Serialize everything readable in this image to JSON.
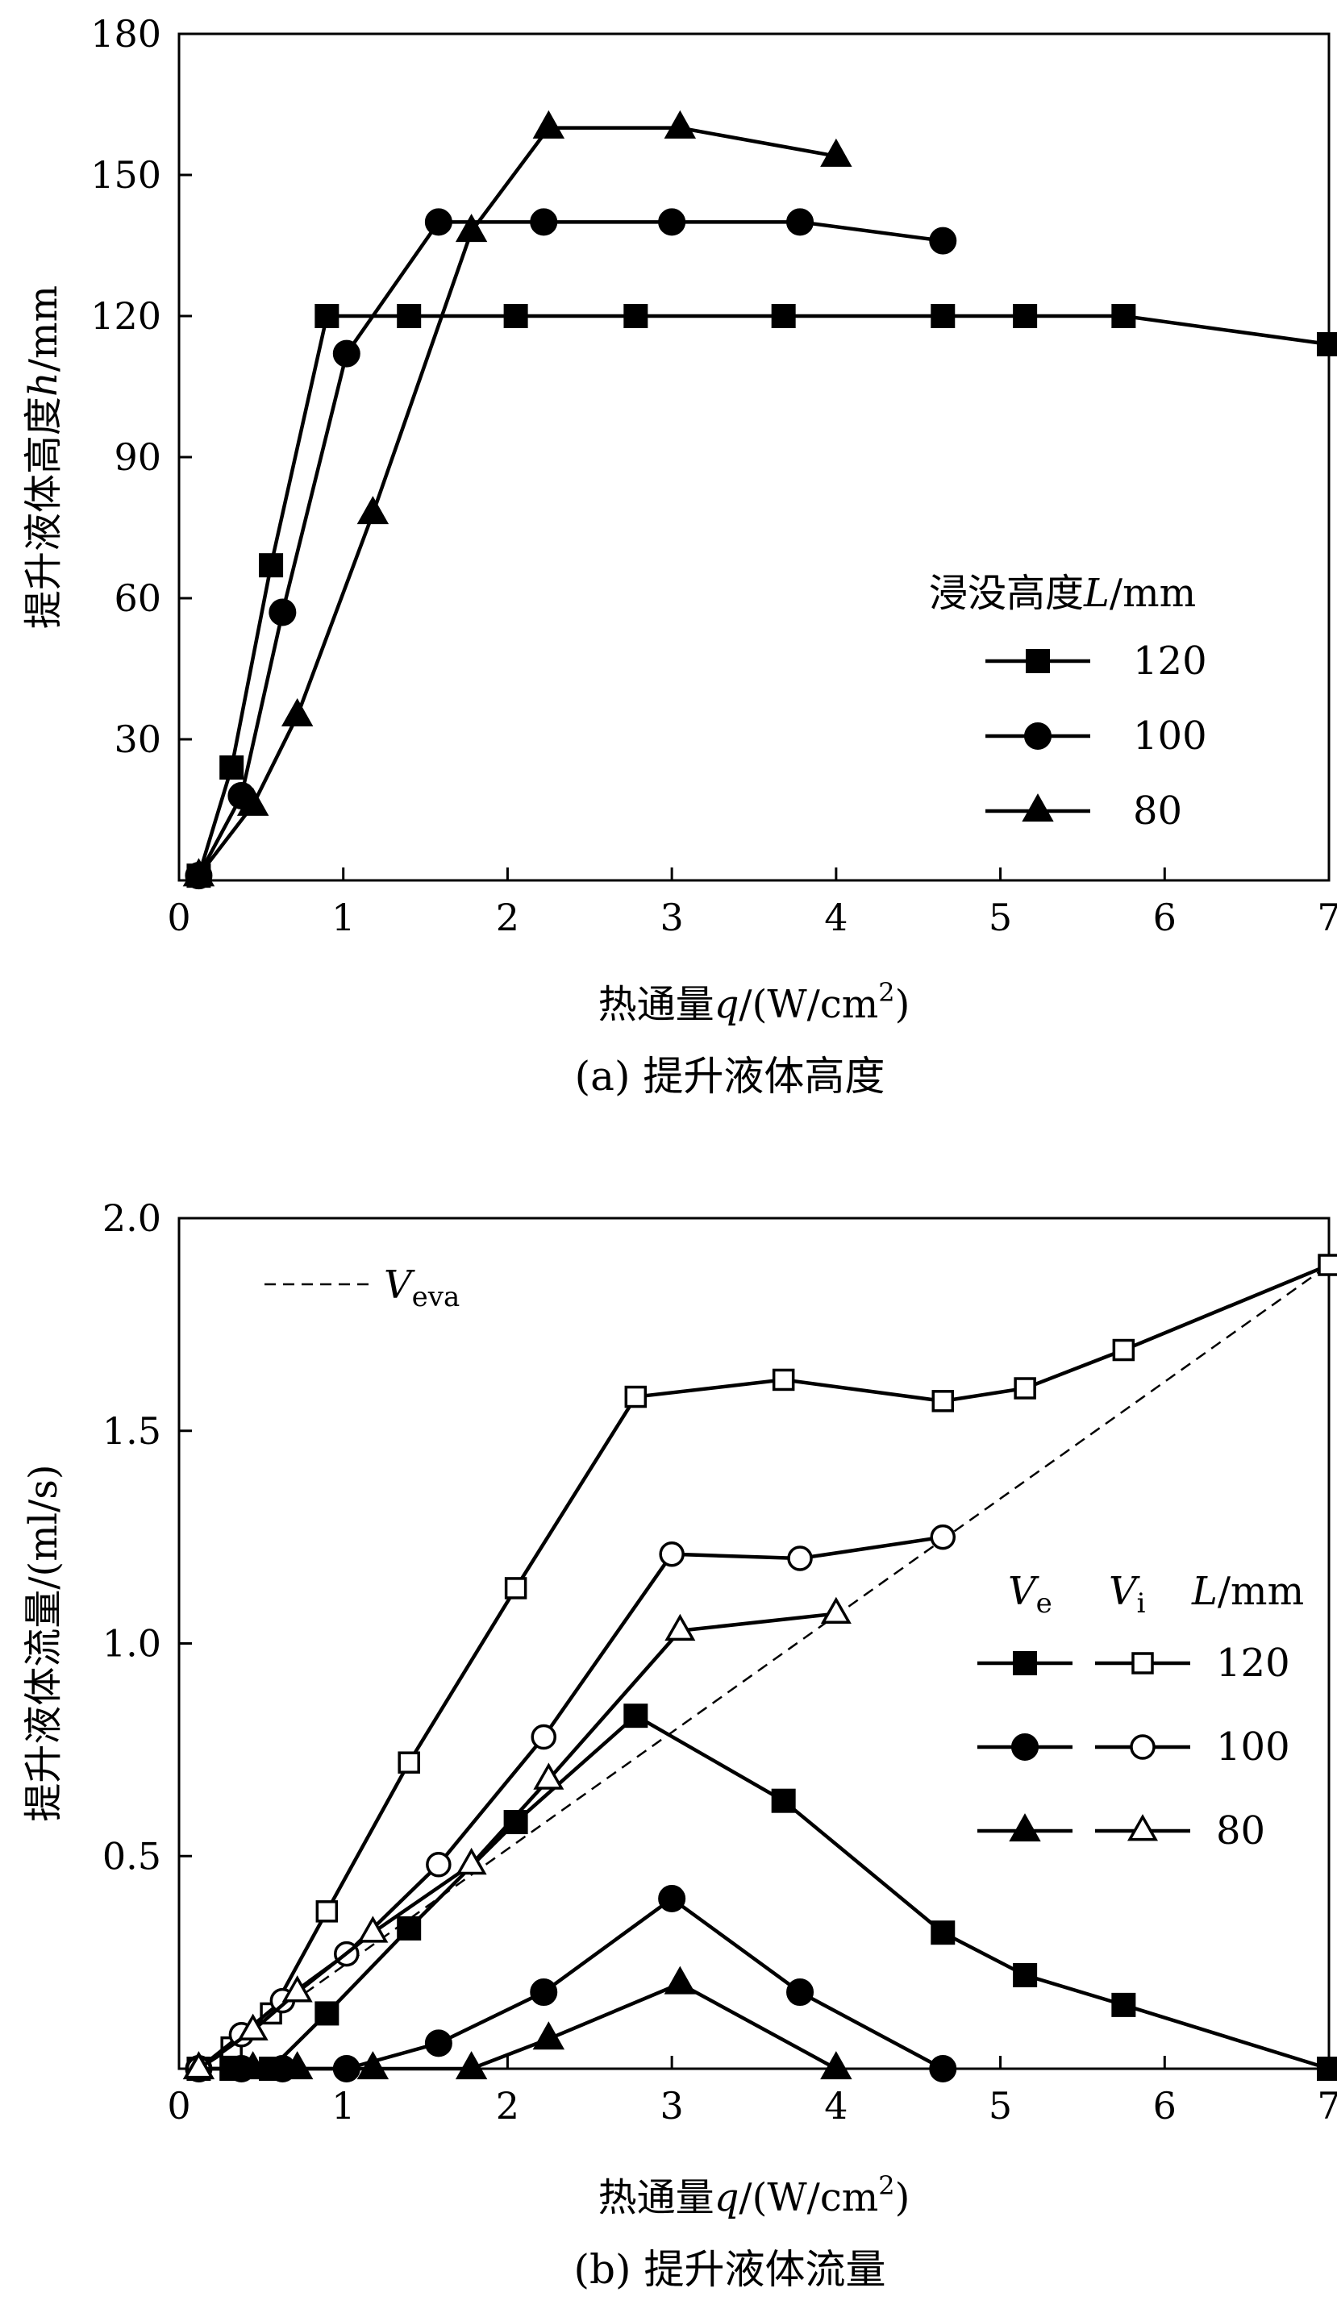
{
  "chart_data": [
    {
      "type": "line",
      "caption": "(a) 提升液体高度",
      "xlabel": {
        "main": "热通量",
        "var": "q",
        "unit": "/(W/cm",
        "sup": "2",
        "close": ")"
      },
      "ylabel": {
        "main": "提升液体高度",
        "var": "h",
        "unit": "/mm"
      },
      "xlim": [
        0,
        7
      ],
      "ylim": [
        0,
        180
      ],
      "xticks": [
        "0",
        "1",
        "2",
        "3",
        "4",
        "5",
        "6",
        "7"
      ],
      "yticks": [
        "30",
        "60",
        "90",
        "120",
        "150",
        "180"
      ],
      "legend_title": {
        "main": "浸没高度",
        "var": "L",
        "unit": "/mm"
      },
      "series": [
        {
          "name": "120",
          "marker": "square",
          "filled": true,
          "x": [
            0.12,
            0.32,
            0.56,
            0.9,
            1.4,
            2.05,
            2.78,
            3.68,
            4.65,
            5.15,
            5.75,
            7.0
          ],
          "y": [
            1,
            24,
            67,
            120,
            120,
            120,
            120,
            120,
            120,
            120,
            120,
            114
          ]
        },
        {
          "name": "100",
          "marker": "circle",
          "filled": true,
          "x": [
            0.12,
            0.38,
            0.63,
            1.02,
            1.58,
            2.22,
            3.0,
            3.78,
            4.65
          ],
          "y": [
            1,
            18,
            57,
            112,
            140,
            140,
            140,
            140,
            136
          ]
        },
        {
          "name": "80",
          "marker": "triangle",
          "filled": true,
          "x": [
            0.12,
            0.45,
            0.72,
            1.18,
            1.78,
            2.25,
            3.05,
            4.0
          ],
          "y": [
            1,
            16,
            35,
            78,
            138,
            160,
            160,
            154
          ]
        }
      ]
    },
    {
      "type": "line",
      "caption": "(b) 提升液体流量",
      "xlabel": {
        "main": "热通量",
        "var": "q",
        "unit": "/(W/cm",
        "sup": "2",
        "close": ")"
      },
      "ylabel": {
        "main": "提升液体流量",
        "var": "",
        "unit": "/(ml/s)"
      },
      "xlim": [
        0,
        7
      ],
      "ylim": [
        0,
        2.0
      ],
      "xticks": [
        "0",
        "1",
        "2",
        "3",
        "4",
        "5",
        "6",
        "7"
      ],
      "yticks": [
        "0.5",
        "1.0",
        "1.5",
        "2.0"
      ],
      "reference_line": {
        "name": "V",
        "sub": "eva",
        "x": [
          0.12,
          7.0
        ],
        "y": [
          0.0,
          1.89
        ]
      },
      "legend_header": {
        "ve": "V",
        "ve_sub": "e",
        "vi": "V",
        "vi_sub": "i",
        "l": "L",
        "l_unit": "/mm"
      },
      "series": [
        {
          "name": "120",
          "kind": "Ve",
          "marker": "square",
          "filled": true,
          "x": [
            0.12,
            0.32,
            0.56,
            0.9,
            1.4,
            2.05,
            2.78,
            3.68,
            4.65,
            5.15,
            5.75,
            7.0
          ],
          "y": [
            0.0,
            0.0,
            0.0,
            0.13,
            0.33,
            0.58,
            0.83,
            0.63,
            0.32,
            0.22,
            0.15,
            0.0
          ]
        },
        {
          "name": "120",
          "kind": "Vi",
          "marker": "square",
          "filled": false,
          "x": [
            0.12,
            0.32,
            0.56,
            0.9,
            1.4,
            2.05,
            2.78,
            3.68,
            4.65,
            5.15,
            5.75,
            7.0
          ],
          "y": [
            0.0,
            0.05,
            0.13,
            0.37,
            0.72,
            1.13,
            1.58,
            1.62,
            1.57,
            1.6,
            1.69,
            1.89
          ]
        },
        {
          "name": "100",
          "kind": "Ve",
          "marker": "circle",
          "filled": true,
          "x": [
            0.12,
            0.38,
            0.63,
            1.02,
            1.58,
            2.22,
            3.0,
            3.78,
            4.65
          ],
          "y": [
            0.0,
            0.0,
            0.0,
            0.0,
            0.06,
            0.18,
            0.4,
            0.18,
            0.0
          ]
        },
        {
          "name": "100",
          "kind": "Vi",
          "marker": "circle",
          "filled": false,
          "x": [
            0.12,
            0.38,
            0.63,
            1.02,
            1.58,
            2.22,
            3.0,
            3.78,
            4.65
          ],
          "y": [
            0.0,
            0.08,
            0.16,
            0.27,
            0.48,
            0.78,
            1.21,
            1.2,
            1.25
          ]
        },
        {
          "name": "80",
          "kind": "Ve",
          "marker": "triangle",
          "filled": true,
          "x": [
            0.12,
            0.45,
            0.72,
            1.18,
            1.78,
            2.25,
            3.05,
            4.0
          ],
          "y": [
            0.0,
            0.0,
            0.0,
            0.0,
            0.0,
            0.07,
            0.2,
            0.0
          ]
        },
        {
          "name": "80",
          "kind": "Vi",
          "marker": "triangle",
          "filled": false,
          "x": [
            0.12,
            0.45,
            0.72,
            1.18,
            1.78,
            2.25,
            3.05,
            4.0
          ],
          "y": [
            0.0,
            0.09,
            0.18,
            0.32,
            0.48,
            0.68,
            1.03,
            1.07
          ]
        }
      ]
    }
  ]
}
